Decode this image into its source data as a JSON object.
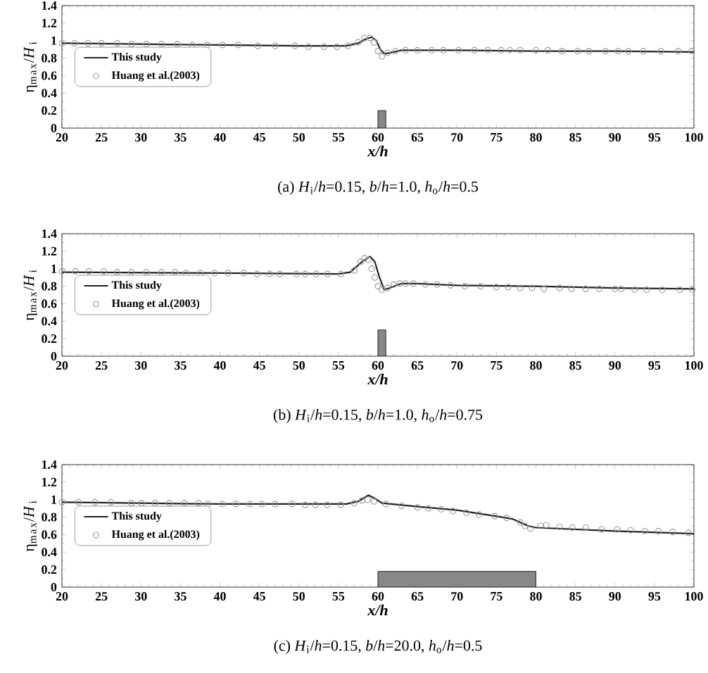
{
  "chart_data": [
    {
      "type": "line",
      "title": "(a) *H*$_{i}$/*h*=0.15,  *b*/*h*=1.0,  *h*$_{o}$/*h*=0.5",
      "xlabel": "x/h",
      "ylabel": "η$_{max}$/*H*$_{i}$",
      "xlim": [
        20,
        100
      ],
      "ylim": [
        0,
        1.4
      ],
      "xticks": [
        20,
        25,
        30,
        35,
        40,
        45,
        50,
        55,
        60,
        65,
        70,
        75,
        80,
        85,
        90,
        95,
        100
      ],
      "yticks": [
        0,
        0.2,
        0.4,
        0.6,
        0.8,
        1,
        1.2,
        1.4
      ],
      "legend": "left",
      "series": [
        {
          "name": "This study",
          "color": "#222222",
          "marker": "none",
          "x": [
            20,
            30,
            40,
            50,
            56,
            57.5,
            58.5,
            59.2,
            59.8,
            60.3,
            60.8,
            61.5,
            63,
            70,
            80,
            90,
            100
          ],
          "values": [
            0.97,
            0.96,
            0.95,
            0.94,
            0.94,
            0.97,
            1.02,
            1.04,
            1.0,
            0.9,
            0.85,
            0.86,
            0.89,
            0.89,
            0.88,
            0.88,
            0.87
          ]
        },
        {
          "name": "Huang et al.(2003)",
          "type": "scatter",
          "color": "#999999",
          "marker": "circle",
          "x": [
            20,
            21.6,
            23.3,
            25,
            27,
            28.8,
            30.7,
            32.6,
            34.6,
            36.5,
            38.4,
            40.3,
            42.3,
            44.8,
            47,
            49.5,
            51.2,
            53.2,
            54.8,
            56.2,
            57.5,
            58.3,
            59,
            59.5,
            60,
            60.5,
            61.2,
            62.2,
            63.5,
            65,
            66.8,
            68.3,
            70.2,
            72.2,
            73.9,
            75.6,
            76.7,
            78,
            80,
            81.5,
            83.3,
            85.3,
            86.7,
            88.8,
            90.4,
            91.7,
            93.6,
            95.8,
            98,
            99.7
          ],
          "values": [
            0.97,
            0.97,
            0.97,
            0.97,
            0.97,
            0.96,
            0.96,
            0.96,
            0.96,
            0.95,
            0.95,
            0.95,
            0.95,
            0.94,
            0.94,
            0.94,
            0.93,
            0.93,
            0.93,
            0.94,
            0.98,
            1.03,
            1.03,
            0.98,
            0.88,
            0.82,
            0.86,
            0.88,
            0.89,
            0.89,
            0.89,
            0.89,
            0.89,
            0.89,
            0.89,
            0.89,
            0.89,
            0.89,
            0.89,
            0.89,
            0.88,
            0.88,
            0.88,
            0.88,
            0.88,
            0.88,
            0.88,
            0.88,
            0.88,
            0.88
          ]
        },
        {
          "type": "area",
          "color": "#888888",
          "x": [
            60,
            60,
            61,
            61
          ],
          "values": [
            0,
            0.2,
            0.2,
            0
          ]
        }
      ]
    },
    {
      "type": "line",
      "title": "(b) *H*$_{i}$/*h*=0.15,  *b*/*h*=1.0,  *h*$_{o}$/*h*=0.75",
      "xlabel": "x/h",
      "ylabel": "η$_{max}$/*H*$_{i}$",
      "xlim": [
        20,
        100
      ],
      "ylim": [
        0,
        1.4
      ],
      "xticks": [
        20,
        25,
        30,
        35,
        40,
        45,
        50,
        55,
        60,
        65,
        70,
        75,
        80,
        85,
        90,
        95,
        100
      ],
      "yticks": [
        0,
        0.2,
        0.4,
        0.6,
        0.8,
        1,
        1.2,
        1.4
      ],
      "legend": "left",
      "series": [
        {
          "name": "This study",
          "color": "#222222",
          "marker": "none",
          "x": [
            20,
            40,
            55,
            56.5,
            58,
            59,
            59.6,
            60.2,
            60.8,
            61.5,
            63,
            65,
            70,
            80,
            90,
            100
          ],
          "values": [
            0.96,
            0.95,
            0.94,
            0.96,
            1.08,
            1.14,
            1.08,
            0.9,
            0.76,
            0.78,
            0.83,
            0.83,
            0.81,
            0.8,
            0.78,
            0.77
          ]
        },
        {
          "name": "Huang et al.(2003)",
          "type": "scatter",
          "color": "#999999",
          "marker": "circle",
          "x": [
            20,
            21.7,
            23.4,
            25.3,
            27,
            28.8,
            30.7,
            32.6,
            34.3,
            35.7,
            37.5,
            39.3,
            41,
            43,
            44.7,
            46.3,
            47.6,
            49.7,
            50.8,
            52.2,
            53.6,
            55.3,
            57,
            57.8,
            58.3,
            58.8,
            59.2,
            59.6,
            60,
            60.5,
            61.2,
            62,
            62.8,
            63.5,
            64.5,
            66,
            67.5,
            69.2,
            71,
            73,
            75,
            76.5,
            78,
            79.5,
            81,
            83,
            84.5,
            86.3,
            88,
            90,
            90.8,
            92.5,
            94,
            96,
            98.2,
            99.8
          ],
          "values": [
            0.97,
            0.97,
            0.97,
            0.97,
            0.96,
            0.96,
            0.96,
            0.96,
            0.96,
            0.95,
            0.95,
            0.95,
            0.95,
            0.95,
            0.94,
            0.94,
            0.94,
            0.94,
            0.94,
            0.94,
            0.94,
            0.94,
            0.98,
            1.08,
            1.12,
            1.1,
            1.0,
            0.9,
            0.8,
            0.76,
            0.78,
            0.82,
            0.83,
            0.83,
            0.83,
            0.82,
            0.82,
            0.81,
            0.8,
            0.8,
            0.79,
            0.79,
            0.78,
            0.78,
            0.77,
            0.78,
            0.77,
            0.77,
            0.77,
            0.77,
            0.77,
            0.76,
            0.76,
            0.76,
            0.76,
            0.76
          ]
        },
        {
          "type": "area",
          "color": "#888888",
          "x": [
            60,
            60,
            61,
            61
          ],
          "values": [
            0,
            0.3,
            0.3,
            0
          ]
        }
      ]
    },
    {
      "type": "line",
      "title": "(c) *H*$_{i}$/*h*=0.15,  *b*/*h*=20.0,  *h*$_{o}$/*h*=0.5",
      "xlabel": "x/h",
      "ylabel": "η$_{max}$/*H*$_{i}$",
      "xlim": [
        20,
        100
      ],
      "ylim": [
        0,
        1.4
      ],
      "xticks": [
        20,
        25,
        30,
        35,
        40,
        45,
        50,
        55,
        60,
        65,
        70,
        75,
        80,
        85,
        90,
        95,
        100
      ],
      "yticks": [
        0,
        0.2,
        0.4,
        0.6,
        0.8,
        1,
        1.2,
        1.4
      ],
      "legend": "left",
      "series": [
        {
          "name": "This study",
          "color": "#222222",
          "marker": "none",
          "x": [
            20,
            40,
            56,
            57.5,
            58.8,
            59.5,
            60.5,
            65,
            70,
            75,
            77,
            79,
            80,
            85,
            90,
            100
          ],
          "values": [
            0.97,
            0.95,
            0.95,
            0.98,
            1.05,
            1.02,
            0.96,
            0.92,
            0.88,
            0.81,
            0.78,
            0.7,
            0.68,
            0.66,
            0.64,
            0.61
          ]
        },
        {
          "name": "Huang et al.(2003)",
          "type": "scatter",
          "color": "#999999",
          "marker": "circle",
          "x": [
            20,
            22.1,
            24.2,
            26.2,
            28.8,
            30.1,
            31.8,
            33.6,
            35.5,
            37.3,
            38.5,
            40.3,
            42,
            43.8,
            45.3,
            47,
            49.1,
            50.8,
            52.1,
            53.6,
            55.3,
            57,
            58,
            58.7,
            59.5,
            61,
            63,
            65,
            66.4,
            68,
            69.5,
            71.2,
            72.8,
            74.8,
            76.3,
            78,
            78.6,
            79.3,
            80.6,
            81.3,
            83,
            84.6,
            86.3,
            88.3,
            90.3,
            92,
            93.8,
            95.5,
            97.3,
            99.3
          ],
          "values": [
            0.97,
            0.97,
            0.97,
            0.97,
            0.96,
            0.96,
            0.96,
            0.96,
            0.96,
            0.96,
            0.95,
            0.95,
            0.95,
            0.95,
            0.95,
            0.95,
            0.95,
            0.94,
            0.94,
            0.94,
            0.94,
            0.96,
            0.99,
            1.0,
            0.98,
            0.95,
            0.93,
            0.91,
            0.9,
            0.89,
            0.87,
            0.85,
            0.83,
            0.81,
            0.79,
            0.74,
            0.7,
            0.67,
            0.7,
            0.71,
            0.69,
            0.68,
            0.68,
            0.66,
            0.66,
            0.65,
            0.64,
            0.64,
            0.63,
            0.62
          ]
        },
        {
          "type": "area",
          "color": "#888888",
          "x": [
            60,
            60,
            80,
            80
          ],
          "values": [
            0,
            0.18,
            0.18,
            0
          ]
        }
      ]
    }
  ]
}
